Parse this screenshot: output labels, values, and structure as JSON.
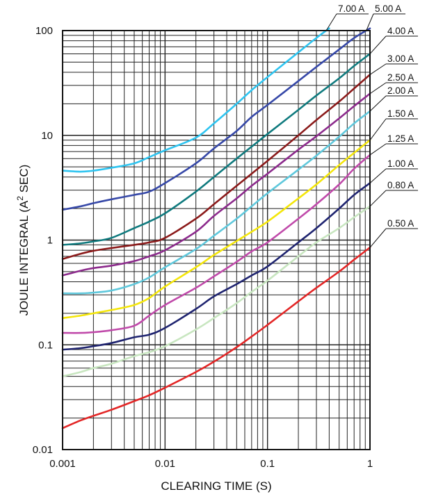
{
  "chart_data": {
    "type": "line",
    "title": "",
    "xlabel": "CLEARING TIME (S)",
    "ylabel_main": "JOULE INTEGRAL (A",
    "ylabel_sup": "2",
    "ylabel_tail": " SEC)",
    "x_scale": "log",
    "y_scale": "log",
    "xlim": [
      0.001,
      1
    ],
    "ylim": [
      0.01,
      100
    ],
    "x_ticks": [
      "0.001",
      "0.01",
      "0.1",
      "1"
    ],
    "y_ticks": [
      "0.01",
      "0.1",
      "1",
      "10",
      "100"
    ],
    "grid": true,
    "series": [
      {
        "name": "0.50 A",
        "color": "#e32626",
        "x": [
          0.001,
          0.0015,
          0.002,
          0.003,
          0.005,
          0.007,
          0.01,
          0.02,
          0.03,
          0.05,
          0.07,
          0.1,
          0.2,
          0.3,
          0.5,
          0.7,
          1.0
        ],
        "y": [
          0.016,
          0.019,
          0.021,
          0.024,
          0.029,
          0.033,
          0.039,
          0.055,
          0.069,
          0.095,
          0.12,
          0.155,
          0.26,
          0.35,
          0.5,
          0.65,
          0.85
        ]
      },
      {
        "name": "0.80 A",
        "color": "#c8e6c0",
        "x": [
          0.001,
          0.0015,
          0.002,
          0.003,
          0.005,
          0.007,
          0.01,
          0.02,
          0.03,
          0.05,
          0.07,
          0.1,
          0.2,
          0.3,
          0.5,
          0.7,
          1.0
        ],
        "y": [
          0.05,
          0.055,
          0.06,
          0.066,
          0.078,
          0.085,
          0.097,
          0.14,
          0.18,
          0.25,
          0.32,
          0.41,
          0.7,
          0.95,
          1.3,
          1.65,
          2.1
        ]
      },
      {
        "name": "1.00 A",
        "color": "#1f2470",
        "x": [
          0.001,
          0.0015,
          0.002,
          0.003,
          0.005,
          0.007,
          0.01,
          0.02,
          0.03,
          0.05,
          0.07,
          0.1,
          0.2,
          0.3,
          0.5,
          0.7,
          1.0
        ],
        "y": [
          0.09,
          0.093,
          0.097,
          0.104,
          0.118,
          0.125,
          0.145,
          0.22,
          0.29,
          0.38,
          0.46,
          0.56,
          0.95,
          1.3,
          2.0,
          2.7,
          3.5
        ]
      },
      {
        "name": "1.25 A",
        "color": "#c04aaa",
        "x": [
          0.001,
          0.0015,
          0.002,
          0.003,
          0.005,
          0.007,
          0.01,
          0.02,
          0.03,
          0.05,
          0.07,
          0.1,
          0.2,
          0.3,
          0.5,
          0.7,
          1.0
        ],
        "y": [
          0.13,
          0.13,
          0.132,
          0.138,
          0.152,
          0.19,
          0.24,
          0.35,
          0.45,
          0.62,
          0.78,
          0.95,
          1.6,
          2.2,
          3.4,
          4.8,
          6.5
        ]
      },
      {
        "name": "1.50 A",
        "color": "#f4e60a",
        "x": [
          0.001,
          0.0015,
          0.002,
          0.003,
          0.005,
          0.007,
          0.01,
          0.02,
          0.03,
          0.05,
          0.07,
          0.1,
          0.2,
          0.3,
          0.5,
          0.7,
          1.0
        ],
        "y": [
          0.18,
          0.19,
          0.2,
          0.215,
          0.24,
          0.28,
          0.36,
          0.55,
          0.72,
          0.98,
          1.2,
          1.5,
          2.5,
          3.4,
          5.2,
          6.8,
          9.0
        ]
      },
      {
        "name": "2.00 A",
        "color": "#5fc8dc",
        "x": [
          0.001,
          0.0015,
          0.002,
          0.003,
          0.005,
          0.007,
          0.01,
          0.02,
          0.03,
          0.05,
          0.07,
          0.1,
          0.2,
          0.3,
          0.5,
          0.7,
          1.0
        ],
        "y": [
          0.31,
          0.31,
          0.315,
          0.33,
          0.38,
          0.44,
          0.55,
          0.82,
          1.1,
          1.6,
          2.1,
          2.8,
          4.7,
          6.4,
          9.7,
          13,
          17
        ]
      },
      {
        "name": "2.50 A",
        "color": "#8c2a8c",
        "x": [
          0.001,
          0.0015,
          0.002,
          0.003,
          0.005,
          0.007,
          0.01,
          0.02,
          0.03,
          0.05,
          0.07,
          0.1,
          0.2,
          0.3,
          0.5,
          0.7,
          1.0
        ],
        "y": [
          0.46,
          0.51,
          0.54,
          0.57,
          0.63,
          0.7,
          0.8,
          1.2,
          1.7,
          2.5,
          3.3,
          4.3,
          7.3,
          9.8,
          14.5,
          19,
          25
        ]
      },
      {
        "name": "3.00 A",
        "color": "#8b1a1a",
        "x": [
          0.001,
          0.0015,
          0.002,
          0.003,
          0.005,
          0.007,
          0.01,
          0.02,
          0.03,
          0.05,
          0.07,
          0.1,
          0.2,
          0.3,
          0.5,
          0.7,
          1.0
        ],
        "y": [
          0.66,
          0.74,
          0.79,
          0.84,
          0.9,
          0.95,
          1.05,
          1.6,
          2.2,
          3.3,
          4.3,
          5.7,
          10,
          14,
          21,
          28,
          38
        ]
      },
      {
        "name": "4.00 A",
        "color": "#0f7a7e",
        "x": [
          0.001,
          0.0015,
          0.002,
          0.003,
          0.005,
          0.007,
          0.01,
          0.02,
          0.03,
          0.05,
          0.07,
          0.1,
          0.2,
          0.3,
          0.5,
          0.7,
          1.0
        ],
        "y": [
          0.9,
          0.93,
          0.97,
          1.05,
          1.3,
          1.5,
          1.8,
          2.9,
          4.0,
          6.0,
          7.8,
          10.3,
          17.5,
          24,
          35,
          46,
          60
        ]
      },
      {
        "name": "5.00 A",
        "color": "#3648a8",
        "x": [
          0.001,
          0.0015,
          0.002,
          0.003,
          0.005,
          0.007,
          0.01,
          0.02,
          0.03,
          0.05,
          0.07,
          0.1,
          0.2,
          0.3,
          0.5,
          0.7,
          1.0
        ],
        "y": [
          1.95,
          2.1,
          2.25,
          2.45,
          2.7,
          2.9,
          3.5,
          5.4,
          7.5,
          11,
          15,
          19.5,
          33,
          45,
          66,
          85,
          105
        ]
      },
      {
        "name": "7.00 A",
        "color": "#2ec4f0",
        "x": [
          0.001,
          0.0015,
          0.002,
          0.003,
          0.005,
          0.007,
          0.01,
          0.02,
          0.03,
          0.05,
          0.07,
          0.1,
          0.2,
          0.3,
          0.4
        ],
        "y": [
          4.6,
          4.5,
          4.6,
          4.9,
          5.4,
          6.2,
          7.2,
          9.5,
          13,
          20,
          27,
          36,
          62,
          85,
          105
        ]
      }
    ]
  }
}
